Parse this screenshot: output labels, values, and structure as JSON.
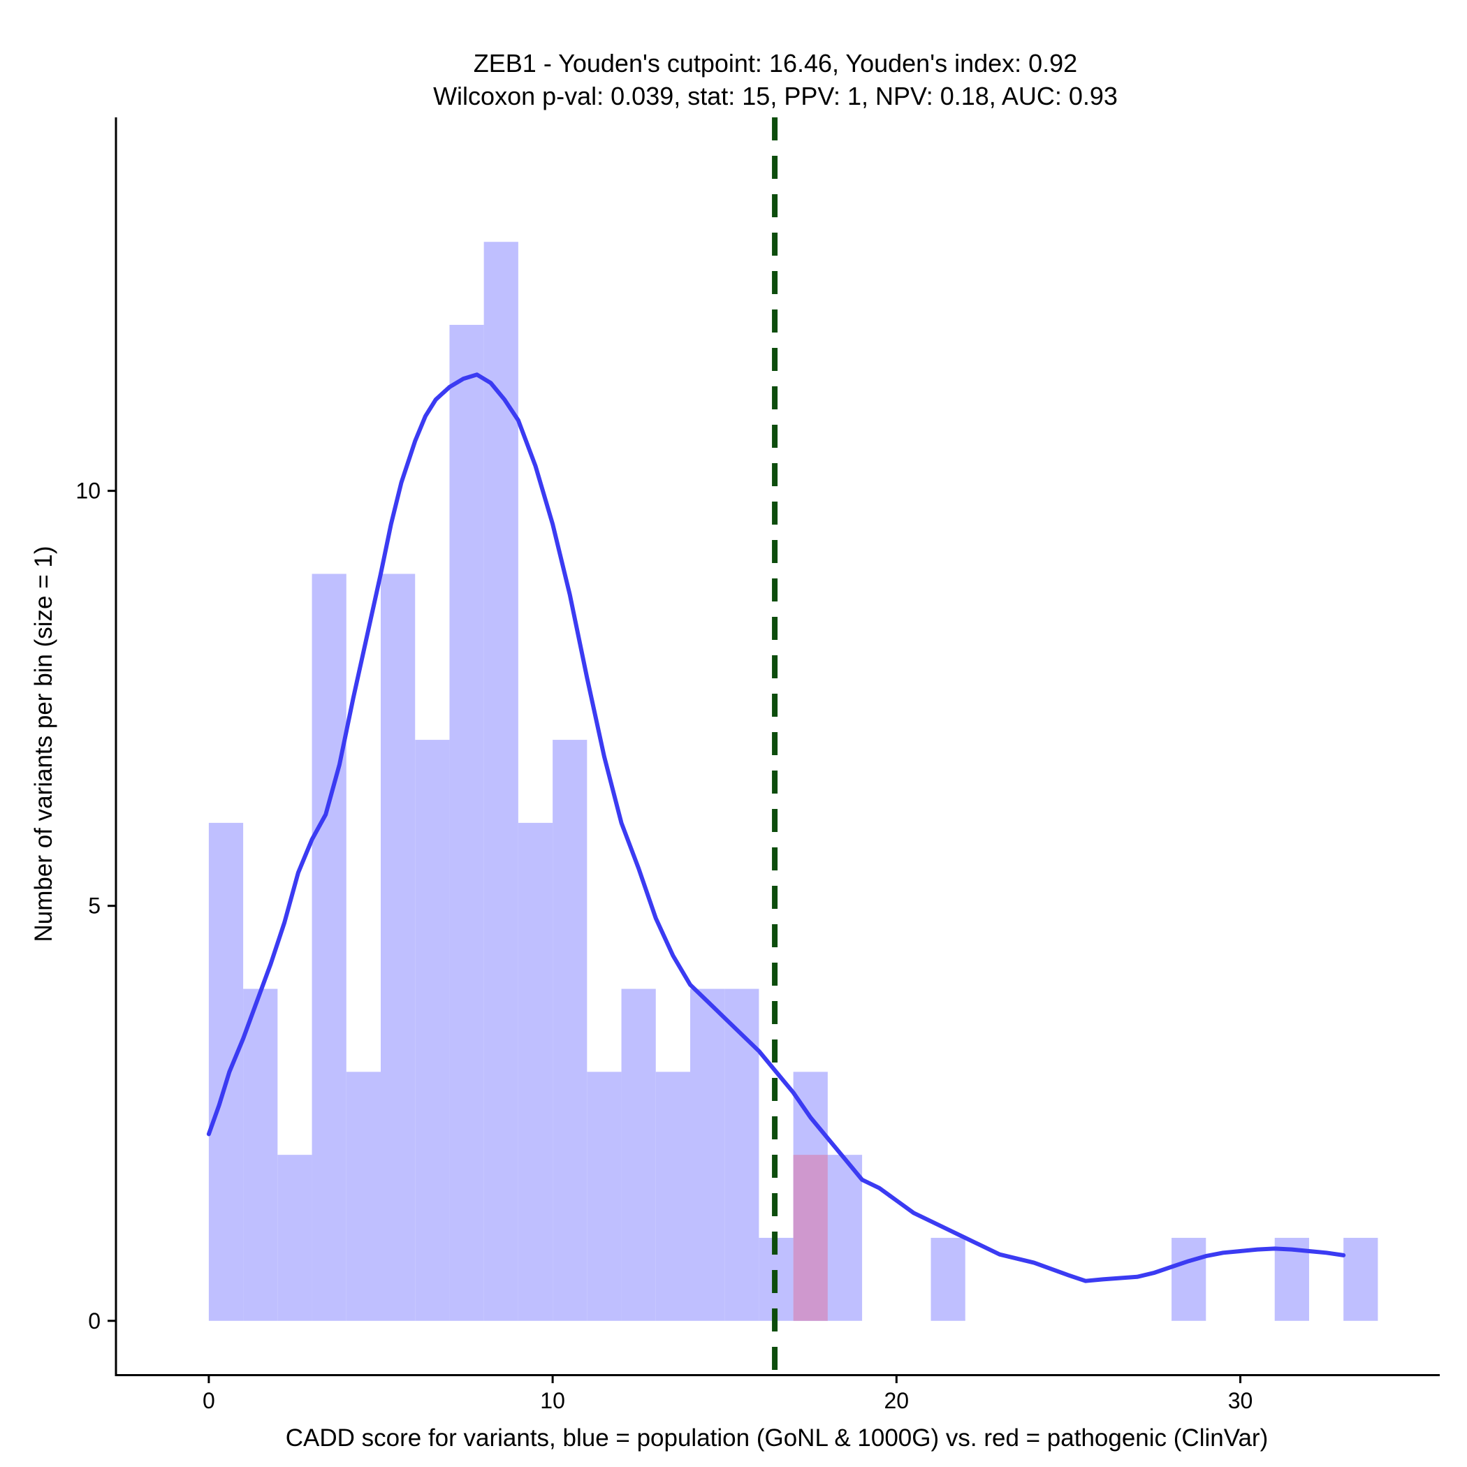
{
  "chart_data": {
    "type": "bar",
    "title": "ZEB1 - Youden's cutpoint: 16.46, Youden's index: 0.92",
    "subtitle": "Wilcoxon p-val: 0.039, stat: 15, PPV: 1, NPV: 0.18, AUC: 0.93",
    "xlabel": "CADD score for variants, blue = population (GoNL & 1000G) vs. red = pathogenic (ClinVar)",
    "ylabel": "Number of variants per bin (size = 1)",
    "xlim": [
      -2.7,
      35.8
    ],
    "ylim": [
      -0.65,
      14.5
    ],
    "x_ticks": [
      0,
      10,
      20,
      30
    ],
    "y_ticks": [
      0,
      5,
      10
    ],
    "bin_width": 1,
    "cutpoint": 16.46,
    "colors": {
      "population": "#bfbfff",
      "pathogenic": "#d191c6",
      "density": "#3b3bf2",
      "cutpoint": "#0d4d0d"
    },
    "series": [
      {
        "key": "population",
        "bins": [
          {
            "x": 0,
            "value": 6
          },
          {
            "x": 1,
            "value": 4
          },
          {
            "x": 2,
            "value": 2
          },
          {
            "x": 3,
            "value": 9
          },
          {
            "x": 4,
            "value": 3
          },
          {
            "x": 5,
            "value": 9
          },
          {
            "x": 6,
            "value": 7
          },
          {
            "x": 7,
            "value": 12
          },
          {
            "x": 8,
            "value": 13
          },
          {
            "x": 9,
            "value": 6
          },
          {
            "x": 10,
            "value": 7
          },
          {
            "x": 11,
            "value": 3
          },
          {
            "x": 12,
            "value": 4
          },
          {
            "x": 13,
            "value": 3
          },
          {
            "x": 14,
            "value": 4
          },
          {
            "x": 15,
            "value": 4
          },
          {
            "x": 16,
            "value": 1
          },
          {
            "x": 17,
            "value": 3
          },
          {
            "x": 18,
            "value": 2
          },
          {
            "x": 21,
            "value": 1
          },
          {
            "x": 28,
            "value": 1
          },
          {
            "x": 31,
            "value": 1
          },
          {
            "x": 33,
            "value": 1
          }
        ]
      },
      {
        "key": "pathogenic",
        "bins": [
          {
            "x": 17,
            "value": 2
          }
        ]
      }
    ],
    "density_curve": {
      "x": [
        0,
        0.3,
        0.6,
        1,
        1.4,
        1.8,
        2.2,
        2.6,
        3,
        3.4,
        3.8,
        4.2,
        4.6,
        5,
        5.3,
        5.6,
        6,
        6.3,
        6.6,
        7,
        7.4,
        7.8,
        8.2,
        8.6,
        9,
        9.5,
        10,
        10.5,
        11,
        11.5,
        12,
        12.5,
        13,
        13.5,
        14,
        14.5,
        15,
        15.5,
        16,
        16.5,
        17,
        17.5,
        18,
        18.5,
        19,
        19.5,
        20,
        20.5,
        21,
        21.5,
        22,
        22.5,
        23,
        24,
        25,
        25.5,
        26,
        27,
        27.5,
        28,
        28.5,
        29,
        29.5,
        30,
        30.5,
        31,
        31.5,
        32,
        32.5,
        33
      ],
      "y": [
        2.25,
        2.6,
        3.0,
        3.4,
        3.85,
        4.3,
        4.8,
        5.4,
        5.8,
        6.1,
        6.7,
        7.5,
        8.25,
        9.0,
        9.6,
        10.1,
        10.6,
        10.9,
        11.1,
        11.25,
        11.35,
        11.4,
        11.3,
        11.1,
        10.85,
        10.3,
        9.6,
        8.75,
        7.75,
        6.8,
        6.0,
        5.45,
        4.85,
        4.4,
        4.05,
        3.85,
        3.65,
        3.45,
        3.25,
        3.0,
        2.75,
        2.45,
        2.2,
        1.95,
        1.7,
        1.6,
        1.45,
        1.3,
        1.2,
        1.1,
        1.0,
        0.9,
        0.8,
        0.7,
        0.55,
        0.48,
        0.5,
        0.53,
        0.58,
        0.65,
        0.72,
        0.78,
        0.82,
        0.84,
        0.86,
        0.87,
        0.86,
        0.84,
        0.82,
        0.79
      ]
    }
  }
}
